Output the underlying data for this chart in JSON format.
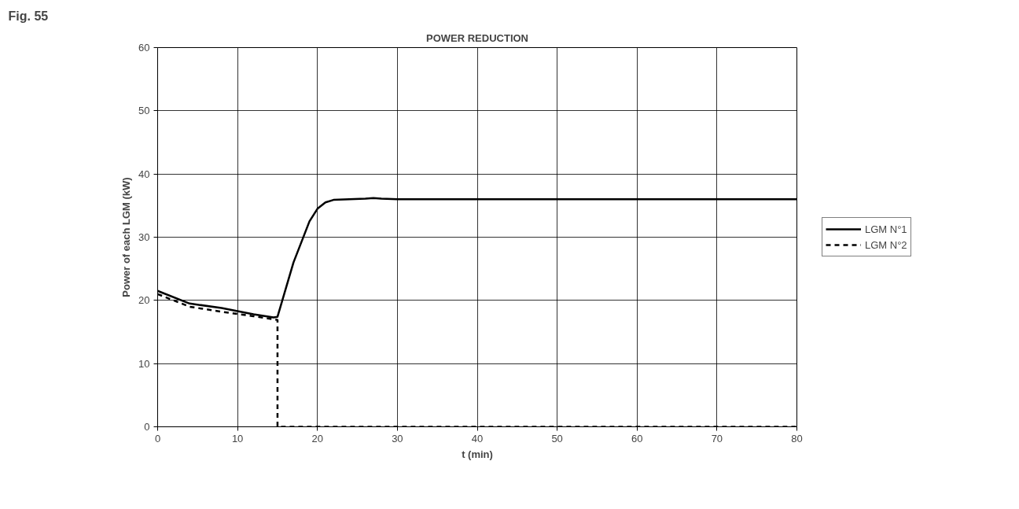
{
  "chart_data": {
    "type": "line",
    "title": "POWER REDUCTION",
    "xlabel": "t (min)",
    "ylabel": "Power of each LGM (kW)",
    "annotations": [
      "Fig. 55"
    ],
    "xlim": [
      0,
      80
    ],
    "xticks": [
      0,
      10,
      20,
      30,
      40,
      50,
      60,
      70,
      80
    ],
    "ylim": [
      0,
      60
    ],
    "yticks": [
      0,
      10,
      20,
      30,
      40,
      50,
      60
    ],
    "grid": true,
    "legend": "right",
    "marker": "none",
    "series": [
      {
        "name": "LGM N°1",
        "color": "#000000",
        "line_style": "solid",
        "x": [
          0,
          4,
          8,
          12,
          14.5,
          15,
          17,
          19,
          20,
          21,
          22,
          24,
          26,
          27,
          28,
          30,
          80
        ],
        "values": [
          21.5,
          19.5,
          18.8,
          17.8,
          17.3,
          17.4,
          26,
          32.5,
          34.5,
          35.5,
          35.9,
          36,
          36.1,
          36.2,
          36.1,
          36,
          36
        ]
      },
      {
        "name": "LGM N°2",
        "color": "#000000",
        "line_style": "dashed",
        "x": [
          0,
          4,
          8,
          12,
          15,
          15,
          80
        ],
        "values": [
          21,
          19,
          18.2,
          17.5,
          16.9,
          0,
          0
        ]
      }
    ]
  }
}
